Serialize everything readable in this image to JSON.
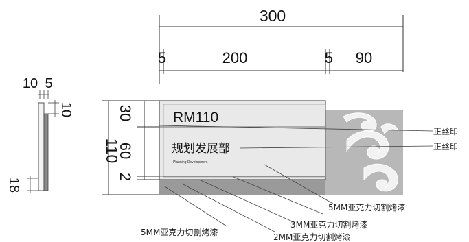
{
  "dimensions": {
    "top_total": "300",
    "top_seg_left_margin": "5",
    "top_seg_main": "200",
    "top_seg_gap": "5",
    "top_seg_right": "90",
    "left_total": "110",
    "left_seg_top": "30",
    "left_seg_mid": "60",
    "left_seg_bottom": "2",
    "side_thickness_a": "10",
    "side_thickness_b": "5",
    "side_top": "10",
    "side_bottom": "18"
  },
  "sign": {
    "room_number": "RM110",
    "department": "规划发展部",
    "department_en": "Planning Development"
  },
  "annotations": {
    "silk_print_1": "正丝印",
    "silk_print_2": "正丝印",
    "acrylic_5mm_right": "5MM亚克力切割烤漆",
    "acrylic_5mm_left": "5MM亚克力切割烤漆",
    "acrylic_3mm": "3MM亚克力切割烤漆",
    "acrylic_2mm": "2MM亚克力切割烤漆"
  },
  "colors": {
    "panel_fill": "#e9e9e9",
    "panel_border": "#555555",
    "base_layer": "#9a9a9a",
    "right_panel": "#b8b8b8",
    "swirl": "#f2f2f2"
  }
}
